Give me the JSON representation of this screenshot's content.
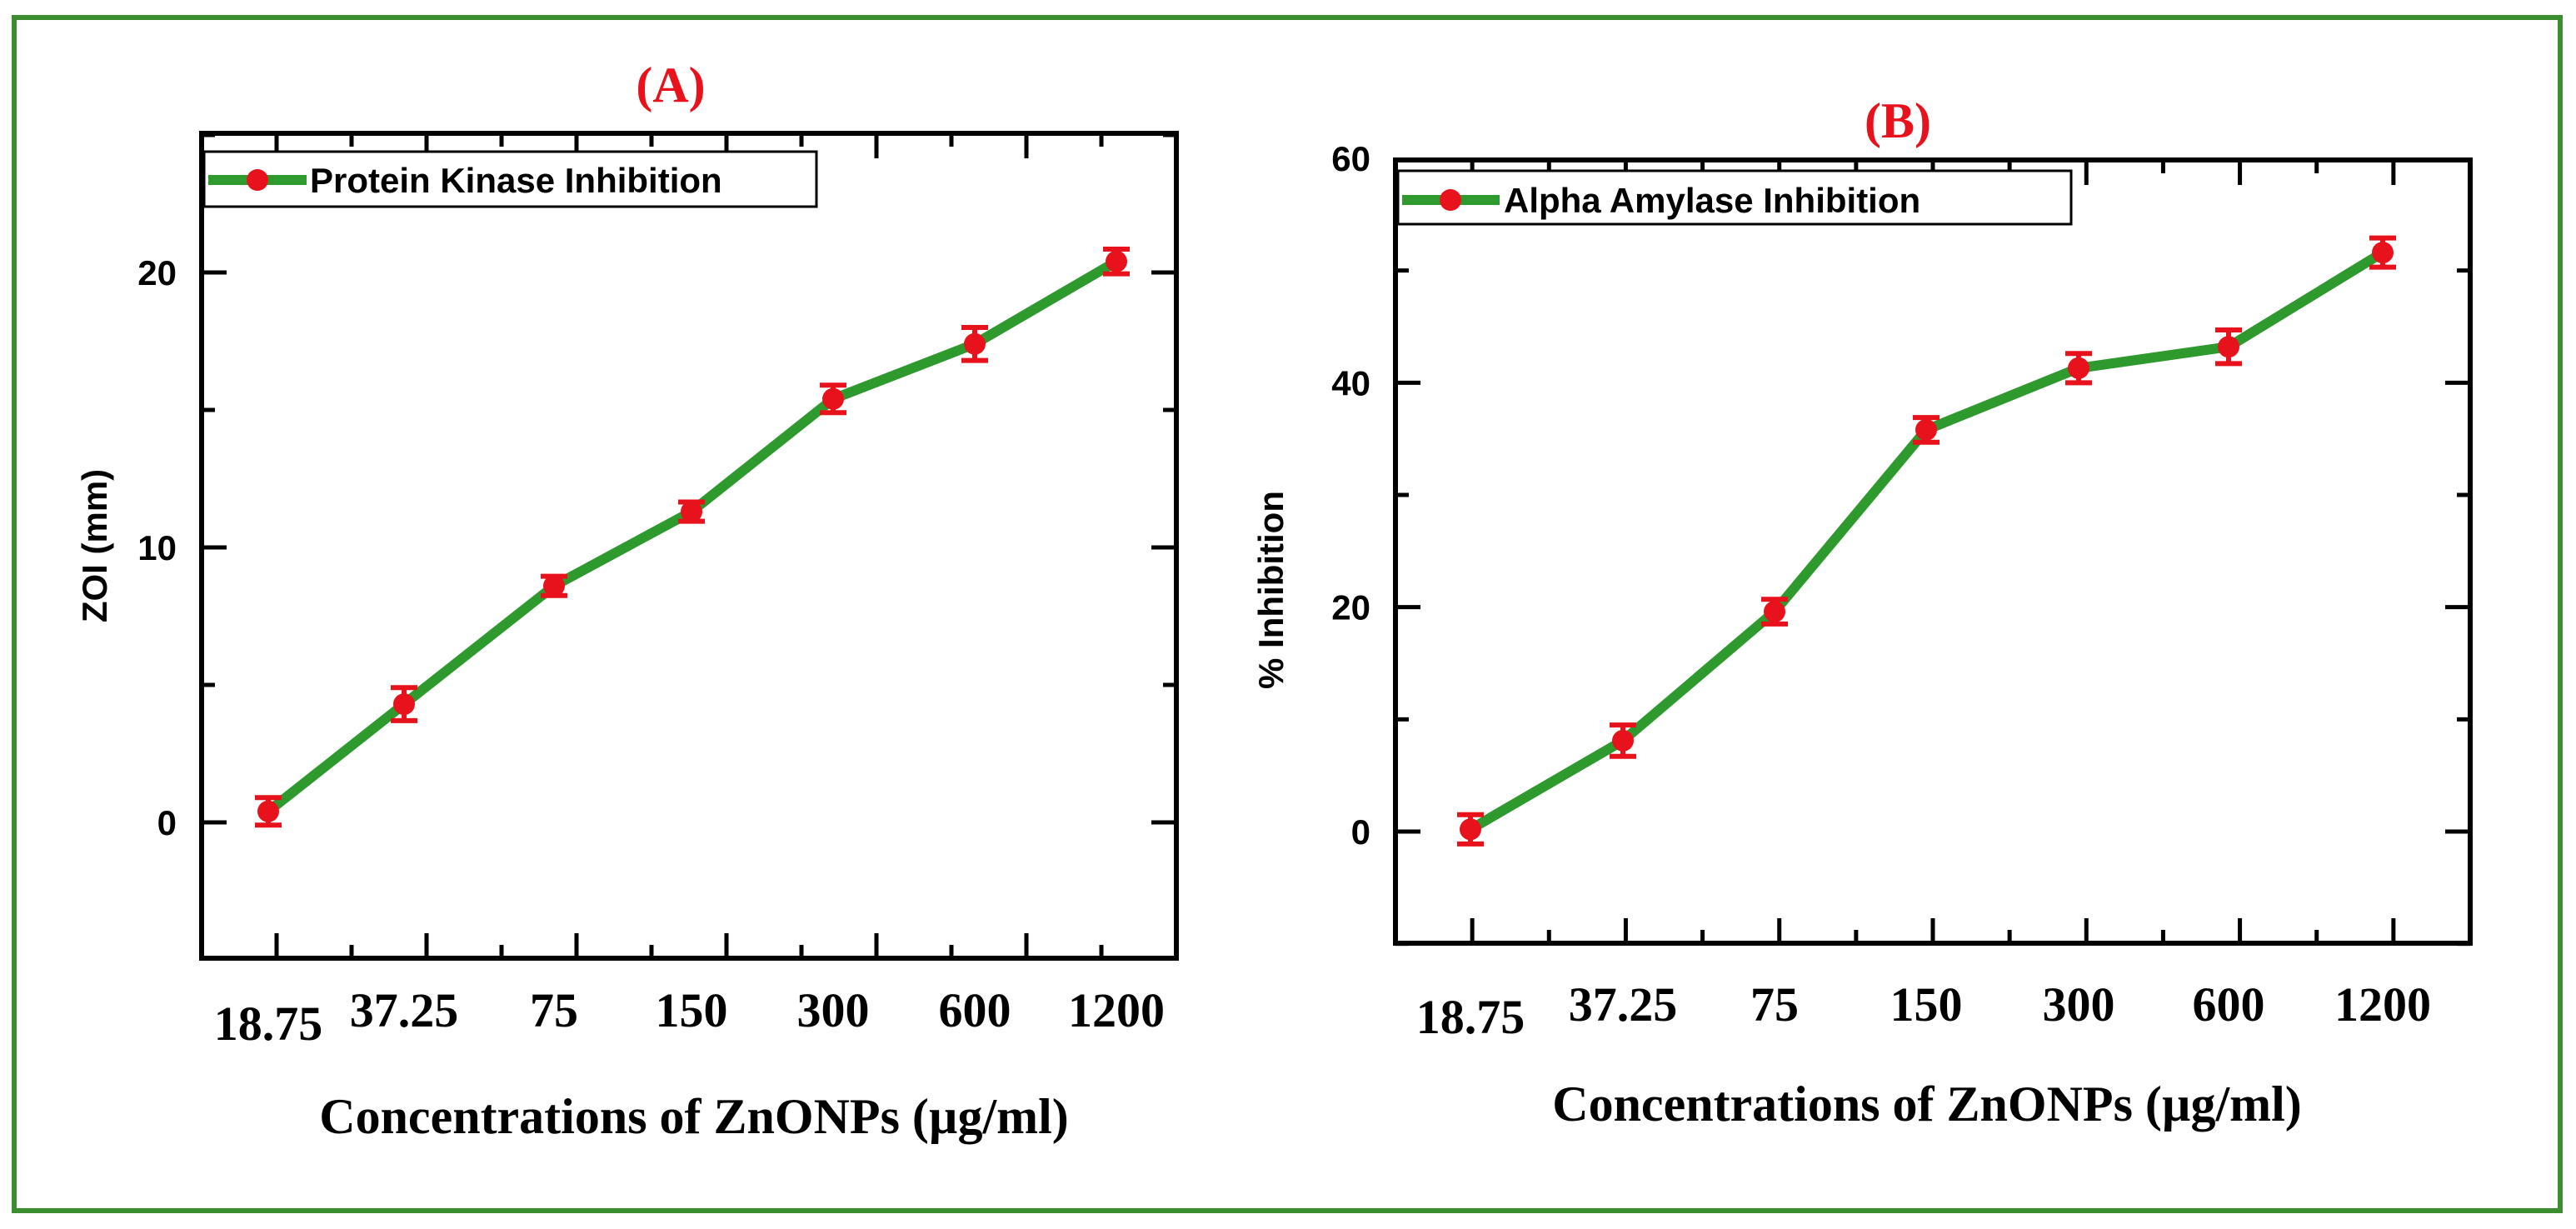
{
  "chart_data": [
    {
      "type": "line",
      "panel_label": "(A)",
      "categories": [
        "18.75",
        "37.25",
        "75",
        "150",
        "300",
        "600",
        "1200"
      ],
      "series": [
        {
          "name": "Protein Kinase Inhibition",
          "values": [
            0.4,
            4.3,
            8.6,
            11.3,
            15.4,
            17.4,
            20.4
          ],
          "errors": [
            0.5,
            0.6,
            0.35,
            0.35,
            0.5,
            0.6,
            0.45
          ],
          "line_color": "#2e9a2e",
          "marker_color": "#e8121c"
        }
      ],
      "xlabel": "Concentrations of ZnONPs (µg/ml)",
      "ylabel": "ZOI (mm)",
      "ylim": [
        -4.8,
        25
      ],
      "yticks": [
        0,
        10,
        20
      ],
      "legend_position": "top-left"
    },
    {
      "type": "line",
      "panel_label": "(B)",
      "categories": [
        "18.75",
        "37.25",
        "75",
        "150",
        "300",
        "600",
        "1200"
      ],
      "series": [
        {
          "name": "Alpha Amylase Inhibition",
          "values": [
            0.2,
            8.1,
            19.6,
            35.8,
            41.3,
            43.2,
            51.6
          ],
          "errors": [
            1.3,
            1.4,
            1.1,
            1.1,
            1.3,
            1.5,
            1.3
          ],
          "line_color": "#2e9a2e",
          "marker_color": "#e8121c"
        }
      ],
      "xlabel": "Concentrations of ZnONPs (µg/ml)",
      "ylabel": "% Inhibition",
      "ylim": [
        -10,
        60
      ],
      "yticks": [
        0,
        20,
        40,
        60
      ],
      "legend_position": "top-left"
    }
  ],
  "colors": {
    "frame_border": "#3c8d2f",
    "panel_label": "#e8121c",
    "axis": "#000000"
  }
}
